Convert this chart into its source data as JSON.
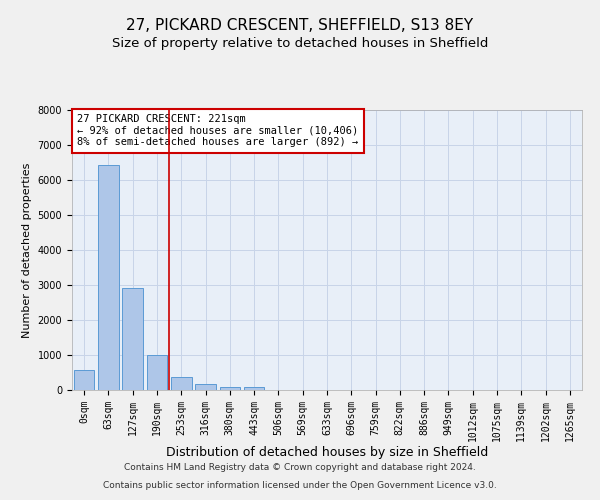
{
  "title1": "27, PICKARD CRESCENT, SHEFFIELD, S13 8EY",
  "title2": "Size of property relative to detached houses in Sheffield",
  "xlabel": "Distribution of detached houses by size in Sheffield",
  "ylabel": "Number of detached properties",
  "bar_labels": [
    "0sqm",
    "63sqm",
    "127sqm",
    "190sqm",
    "253sqm",
    "316sqm",
    "380sqm",
    "443sqm",
    "506sqm",
    "569sqm",
    "633sqm",
    "696sqm",
    "759sqm",
    "822sqm",
    "886sqm",
    "949sqm",
    "1012sqm",
    "1075sqm",
    "1139sqm",
    "1202sqm",
    "1265sqm"
  ],
  "bar_values": [
    570,
    6430,
    2920,
    990,
    360,
    165,
    100,
    90,
    0,
    0,
    0,
    0,
    0,
    0,
    0,
    0,
    0,
    0,
    0,
    0,
    0
  ],
  "bar_color": "#aec6e8",
  "bar_edge_color": "#5b9bd5",
  "property_line_bin": 3.5,
  "annotation_box_text": "27 PICKARD CRESCENT: 221sqm\n← 92% of detached houses are smaller (10,406)\n8% of semi-detached houses are larger (892) →",
  "annotation_box_color": "#cc0000",
  "ylim": [
    0,
    8000
  ],
  "yticks": [
    0,
    1000,
    2000,
    3000,
    4000,
    5000,
    6000,
    7000,
    8000
  ],
  "grid_color": "#c8d4e8",
  "background_color": "#e8eff8",
  "fig_background_color": "#f0f0f0",
  "footer_line1": "Contains HM Land Registry data © Crown copyright and database right 2024.",
  "footer_line2": "Contains public sector information licensed under the Open Government Licence v3.0.",
  "title1_fontsize": 11,
  "title2_fontsize": 9.5,
  "xlabel_fontsize": 9,
  "ylabel_fontsize": 8,
  "tick_fontsize": 7,
  "annotation_fontsize": 7.5,
  "footer_fontsize": 6.5
}
